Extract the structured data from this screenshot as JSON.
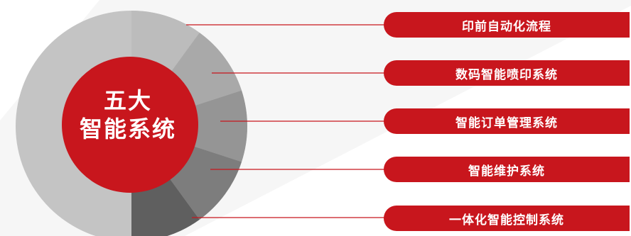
{
  "hub": {
    "line1": "五大",
    "line2": "智能系统"
  },
  "systems": [
    "印前自动化流程",
    "数码智能喷印系统",
    "智能订单管理系统",
    "智能维护系统",
    "一体化智能控制系统"
  ],
  "colors": {
    "accent": "#c8161d",
    "ring": "#c2c2c2",
    "segments": [
      "#bcbcbc",
      "#a9a9a9",
      "#959595",
      "#7d7d7d",
      "#5f5f5f"
    ],
    "connector": "#c8161d",
    "background_shape": "#f4f4f4"
  }
}
